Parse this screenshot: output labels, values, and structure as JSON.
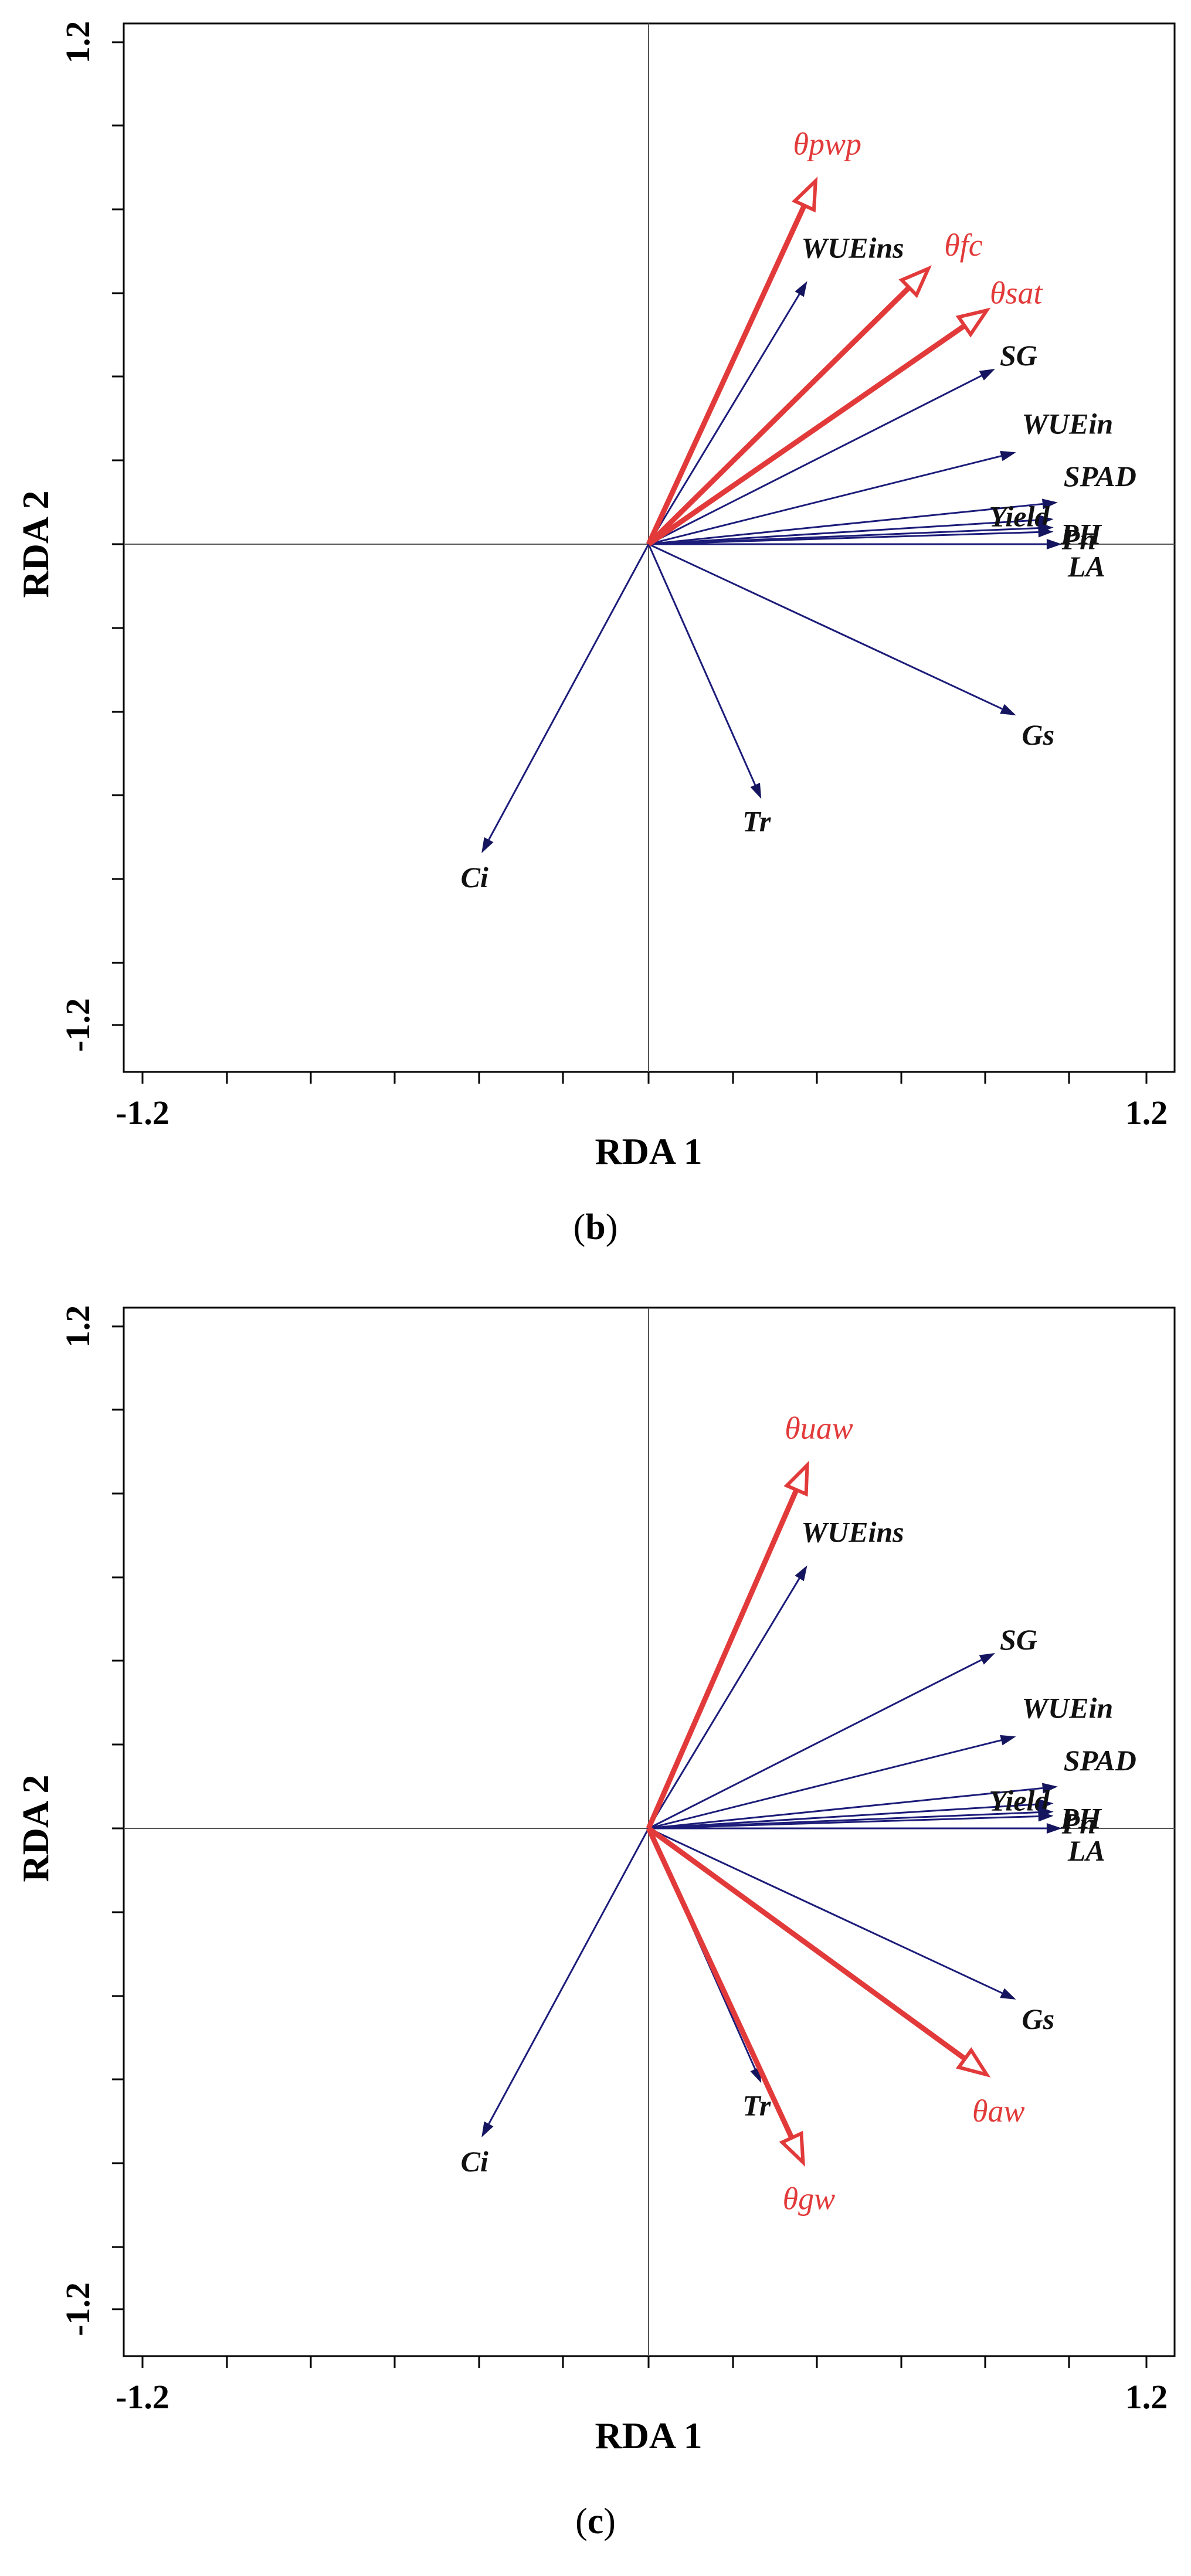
{
  "figure": {
    "captions": {
      "b_open": "(",
      "b_letter": "b",
      "b_close": ")",
      "c_open": "(",
      "c_letter": "c",
      "c_close": ")"
    }
  },
  "colors": {
    "response_vectors": "#1c1c7a",
    "environment_vectors": "#e23a3a"
  },
  "chart_data": [
    {
      "panel": "b",
      "type": "scatter",
      "subtype": "rda-biplot",
      "xlabel": "RDA 1",
      "ylabel": "RDA 2",
      "xlim": [
        -1.2,
        1.2
      ],
      "ylim": [
        -1.2,
        1.2
      ],
      "xtick_labels": [
        "-1.2",
        "1.2"
      ],
      "ytick_labels": [
        "1.2",
        "-1.2"
      ],
      "grid": false,
      "origin_lines": true,
      "response_vectors": [
        {
          "name": "WUEins",
          "x": 0.38,
          "y": 0.63
        },
        {
          "name": "SG",
          "x": 0.83,
          "y": 0.42
        },
        {
          "name": "WUEin",
          "x": 0.88,
          "y": 0.22
        },
        {
          "name": "SPAD",
          "x": 0.98,
          "y": 0.1
        },
        {
          "name": "Yield",
          "x": 0.97,
          "y": 0.06
        },
        {
          "name": "PH",
          "x": 0.97,
          "y": 0.04
        },
        {
          "name": "Pn",
          "x": 0.97,
          "y": 0.03
        },
        {
          "name": "LA",
          "x": 0.99,
          "y": 0.0
        },
        {
          "name": "Gs",
          "x": 0.88,
          "y": -0.41
        },
        {
          "name": "Tr",
          "x": 0.27,
          "y": -0.61
        },
        {
          "name": "Ci",
          "x": -0.4,
          "y": -0.74
        }
      ],
      "environment_vectors": [
        {
          "name": "θpwp",
          "x": 0.4,
          "y": 0.87
        },
        {
          "name": "θfc",
          "x": 0.67,
          "y": 0.66
        },
        {
          "name": "θsat",
          "x": 0.81,
          "y": 0.56
        }
      ]
    },
    {
      "panel": "c",
      "type": "scatter",
      "subtype": "rda-biplot",
      "xlabel": "RDA 1",
      "ylabel": "RDA 2",
      "xlim": [
        -1.2,
        1.2
      ],
      "ylim": [
        -1.2,
        1.2
      ],
      "xtick_labels": [
        "-1.2",
        "1.2"
      ],
      "ytick_labels": [
        "1.2",
        "-1.2"
      ],
      "grid": false,
      "origin_lines": true,
      "response_vectors": [
        {
          "name": "WUEins",
          "x": 0.38,
          "y": 0.63
        },
        {
          "name": "SG",
          "x": 0.83,
          "y": 0.42
        },
        {
          "name": "WUEin",
          "x": 0.88,
          "y": 0.22
        },
        {
          "name": "SPAD",
          "x": 0.98,
          "y": 0.1
        },
        {
          "name": "Yield",
          "x": 0.97,
          "y": 0.06
        },
        {
          "name": "PH",
          "x": 0.97,
          "y": 0.04
        },
        {
          "name": "Pn",
          "x": 0.97,
          "y": 0.03
        },
        {
          "name": "LA",
          "x": 0.99,
          "y": 0.0
        },
        {
          "name": "Gs",
          "x": 0.88,
          "y": -0.41
        },
        {
          "name": "Tr",
          "x": 0.27,
          "y": -0.61
        },
        {
          "name": "Ci",
          "x": -0.4,
          "y": -0.74
        }
      ],
      "environment_vectors": [
        {
          "name": "θuaw",
          "x": 0.38,
          "y": 0.87
        },
        {
          "name": "θaw",
          "x": 0.81,
          "y": -0.59
        },
        {
          "name": "θgw",
          "x": 0.37,
          "y": -0.8
        }
      ]
    }
  ]
}
